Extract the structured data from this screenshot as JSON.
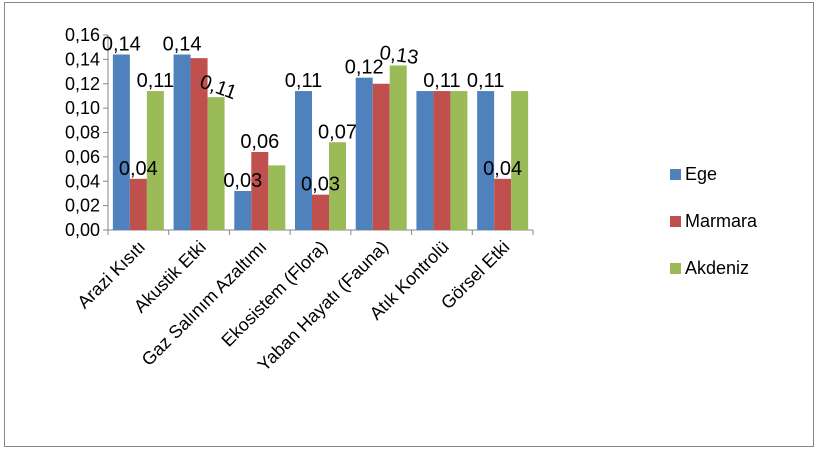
{
  "chart_data": {
    "type": "bar",
    "categories": [
      "Arazi Kısıtı",
      "Akustik Etki",
      "Gaz Salınım Azaltımı",
      "Ekosistem (Flora)",
      "Yaban Hayatı (Fauna)",
      "Atık Kontrolü",
      "Görsel Etki"
    ],
    "series": [
      {
        "name": "Ege",
        "color": "#4f81bd",
        "values": [
          0.144,
          0.144,
          0.032,
          0.114,
          0.125,
          0.114,
          0.114
        ],
        "labels": [
          "0,14",
          "0,14",
          "0,03",
          "0,11",
          "0,12",
          "",
          "0,11"
        ]
      },
      {
        "name": "Marmara",
        "color": "#c0504d",
        "values": [
          0.042,
          0.141,
          0.064,
          0.029,
          0.12,
          0.114,
          0.042
        ],
        "labels": [
          "0,04",
          "",
          "0,06",
          "0,03",
          "",
          "0,11",
          "0,04"
        ]
      },
      {
        "name": "Akdeniz",
        "color": "#9bbb59",
        "values": [
          0.114,
          0.109,
          0.053,
          0.072,
          0.135,
          0.114,
          0.114
        ],
        "labels": [
          "0,11",
          "0,11",
          "",
          "0,07",
          "0,13",
          "",
          ""
        ]
      }
    ],
    "ylim": [
      0,
      0.16
    ],
    "yticks": [
      "0,00",
      "0,02",
      "0,04",
      "0,06",
      "0,08",
      "0,10",
      "0,12",
      "0,14",
      "0,16"
    ],
    "legend_position": "right",
    "grid": false
  }
}
